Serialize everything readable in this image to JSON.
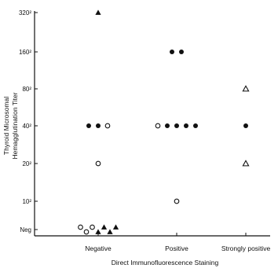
{
  "chart_data": {
    "type": "scatter",
    "title": "",
    "ylabel_lines": [
      "Thyroid Microsomal",
      "Hemagglutination Titer"
    ],
    "xlabel": "Direct Immunofluorescence Staining",
    "categories": [
      "Negative",
      "Positive",
      "Strongly positive"
    ],
    "y_ticks": [
      "Neg",
      "10²",
      "20²",
      "40²",
      "80²",
      "160²",
      "320²"
    ],
    "scale": "log2 titer (Neg below lowest dilution)",
    "grid": false,
    "legend": "none",
    "series": [
      {
        "marker": "filled-triangle",
        "points": [
          {
            "x": "Negative",
            "y": "320²"
          },
          {
            "x": "Negative",
            "y": "Neg"
          },
          {
            "x": "Negative",
            "y": "Neg"
          },
          {
            "x": "Negative",
            "y": "Neg"
          },
          {
            "x": "Negative",
            "y": "Neg"
          }
        ]
      },
      {
        "marker": "filled-circle",
        "points": [
          {
            "x": "Negative",
            "y": "40²"
          },
          {
            "x": "Negative",
            "y": "40²"
          },
          {
            "x": "Positive",
            "y": "160²"
          },
          {
            "x": "Positive",
            "y": "160²"
          },
          {
            "x": "Positive",
            "y": "40²"
          },
          {
            "x": "Positive",
            "y": "40²"
          },
          {
            "x": "Positive",
            "y": "40²"
          },
          {
            "x": "Positive",
            "y": "40²"
          },
          {
            "x": "Strongly positive",
            "y": "40²"
          }
        ]
      },
      {
        "marker": "open-circle",
        "points": [
          {
            "x": "Negative",
            "y": "40²"
          },
          {
            "x": "Negative",
            "y": "20²"
          },
          {
            "x": "Negative",
            "y": "Neg"
          },
          {
            "x": "Negative",
            "y": "Neg"
          },
          {
            "x": "Negative",
            "y": "Neg"
          },
          {
            "x": "Positive",
            "y": "40²"
          },
          {
            "x": "Positive",
            "y": "10²"
          }
        ]
      },
      {
        "marker": "open-triangle",
        "points": [
          {
            "x": "Strongly positive",
            "y": "80²"
          },
          {
            "x": "Strongly positive",
            "y": "20²"
          }
        ]
      }
    ]
  }
}
